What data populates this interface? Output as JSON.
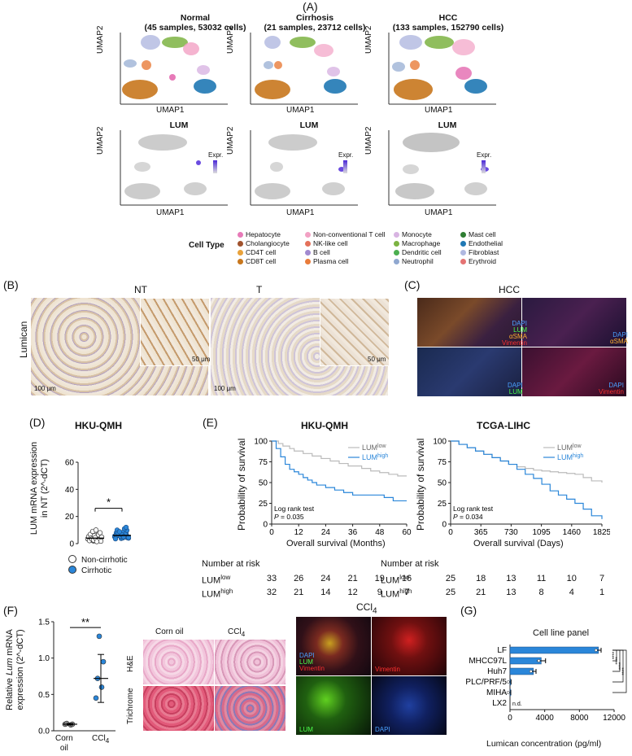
{
  "panels": {
    "A": "(A)",
    "B": "(B)",
    "C": "(C)",
    "D": "(D)",
    "E": "(E)",
    "F": "(F)",
    "G": "(G)"
  },
  "panelA": {
    "umaps": [
      {
        "title1": "Normal",
        "title2": "(45 samples, 53032 cells)"
      },
      {
        "title1": "Cirrhosis",
        "title2": "(21 samples, 23712 cells)"
      },
      {
        "title1": "HCC",
        "title2": "(133 samples, 152790 cells)"
      }
    ],
    "lum_title": "LUM",
    "xlabel": "UMAP1",
    "ylabel": "UMAP2",
    "expr_label": "Expr.",
    "celltype_label": "Cell Type",
    "celltypes": [
      {
        "name": "Hepatocyte",
        "color": "#e77ab8"
      },
      {
        "name": "Cholangiocyte",
        "color": "#a0522d"
      },
      {
        "name": "CD4T cell",
        "color": "#e9a23b"
      },
      {
        "name": "CD8T cell",
        "color": "#c8771d"
      },
      {
        "name": "Non-conventional T cell",
        "color": "#f2a1c4"
      },
      {
        "name": "NK-like cell",
        "color": "#e4715a"
      },
      {
        "name": "B cell",
        "color": "#a18ad0"
      },
      {
        "name": "Plasma cell",
        "color": "#e97c3a"
      },
      {
        "name": "Monocyte",
        "color": "#d8b4e2"
      },
      {
        "name": "Macrophage",
        "color": "#7cb342"
      },
      {
        "name": "Dendritic cell",
        "color": "#4caf50"
      },
      {
        "name": "Neutrophil",
        "color": "#90a8d0"
      },
      {
        "name": "Mast cell",
        "color": "#2e7d32"
      },
      {
        "name": "Endothelial",
        "color": "#1f78b4"
      },
      {
        "name": "Fibroblast",
        "color": "#b0b8e0"
      },
      {
        "name": "Erythroid",
        "color": "#e57373"
      }
    ]
  },
  "panelB": {
    "nt": "NT",
    "t": "T",
    "ylabel": "Lumican",
    "scale1": "100 μm",
    "scale2": "50 μm"
  },
  "panelC": {
    "title": "HCC",
    "q1": [
      "DAPI",
      "LUM",
      "αSMA",
      "Vimentin"
    ],
    "q2": [
      "DAPI",
      "αSMA"
    ],
    "q3": [
      "DAPI",
      "LUM"
    ],
    "q4": [
      "DAPI",
      "Vimentin"
    ]
  },
  "panelD": {
    "title": "HKU-QMH",
    "ylabel1": "LUM mRNA expression",
    "ylabel2": "in NT (2^-dCT)",
    "sig": "*",
    "legend": [
      {
        "name": "Non-cirrhotic",
        "color": "#ffffff"
      },
      {
        "name": "Cirrhotic",
        "color": "#2a86d9"
      }
    ],
    "yticks": [
      "0",
      "20",
      "40",
      "60"
    ]
  },
  "panelE": {
    "ylabel": "Probability of survival",
    "risk_label": "Number at risk",
    "plots": [
      {
        "title": "HKU-QMH",
        "xlabel": "Overall survival (Months)",
        "xticks": [
          "0",
          "12",
          "24",
          "36",
          "48",
          "60"
        ],
        "test": "Log rank test",
        "p": "P = 0.035",
        "low_label": "LUM",
        "low_sup": "low",
        "high_label": "LUM",
        "high_sup": "high",
        "risk_low": [
          "33",
          "26",
          "24",
          "21",
          "19",
          "16"
        ],
        "risk_high": [
          "32",
          "21",
          "14",
          "12",
          "9",
          "7"
        ]
      },
      {
        "title": "TCGA-LIHC",
        "xlabel": "Overall survival (Days)",
        "xticks": [
          "0",
          "365",
          "730",
          "1095",
          "1460",
          "1825"
        ],
        "test": "Log rank test",
        "p": "P = 0.034",
        "low_label": "LUM",
        "low_sup": "low",
        "high_label": "LUM",
        "high_sup": "high",
        "risk_low": [
          "25",
          "18",
          "13",
          "11",
          "10",
          "7"
        ],
        "risk_high": [
          "25",
          "21",
          "13",
          "8",
          "4",
          "1"
        ]
      }
    ],
    "yticks": [
      "0",
      "25",
      "50",
      "75",
      "100"
    ]
  },
  "panelF": {
    "ylabel1": "Relative Lum mRNA",
    "ylabel2": "expression (2^-dCT)",
    "sig": "**",
    "yticks": [
      "0.0",
      "0.5",
      "1.0",
      "1.5"
    ],
    "cats": [
      "Corn",
      "oil",
      "CCl4"
    ],
    "hist_cols": [
      "Corn oil",
      "CCl4"
    ],
    "hist_rows": [
      "H&E",
      "Trichrome"
    ],
    "if_title": "CCl4",
    "if_labels": {
      "q1": [
        "DAPI",
        "LUM",
        "Vimentin"
      ],
      "q2": "Vimentin",
      "q3": "LUM",
      "q4": "DAPI"
    }
  },
  "chart_data": [
    {
      "type": "scatter",
      "title": "HKU-QMH",
      "ylabel": "LUM mRNA expression in NT (2^-dCT)",
      "ylim": [
        0,
        60
      ],
      "groups": [
        "Non-cirrhotic",
        "Cirrhotic"
      ],
      "group_mean": [
        4,
        6
      ],
      "sig": "*"
    },
    {
      "type": "line",
      "title": "HKU-QMH",
      "xlabel": "Overall survival (Months)",
      "ylabel": "Probability of survival",
      "xlim": [
        0,
        60
      ],
      "ylim": [
        0,
        100
      ],
      "series": [
        {
          "name": "LUMlow",
          "color": "#bbbbbb",
          "x": [
            0,
            3,
            5,
            8,
            10,
            14,
            18,
            22,
            26,
            30,
            34,
            40,
            44,
            48,
            52,
            56,
            60
          ],
          "y": [
            100,
            97,
            94,
            91,
            88,
            85,
            82,
            79,
            76,
            73,
            70,
            67,
            64,
            62,
            60,
            58,
            58
          ]
        },
        {
          "name": "LUMhigh",
          "color": "#2a86d9",
          "x": [
            0,
            2,
            4,
            6,
            8,
            10,
            12,
            14,
            16,
            18,
            20,
            24,
            28,
            32,
            36,
            44,
            50,
            54,
            60
          ],
          "y": [
            100,
            91,
            81,
            72,
            66,
            63,
            60,
            56,
            53,
            50,
            47,
            44,
            41,
            38,
            35,
            35,
            32,
            28,
            28
          ]
        }
      ]
    },
    {
      "type": "line",
      "title": "TCGA-LIHC",
      "xlabel": "Overall survival (Days)",
      "ylabel": "Probability of survival",
      "xlim": [
        0,
        1825
      ],
      "ylim": [
        0,
        100
      ],
      "series": [
        {
          "name": "LUMlow",
          "color": "#bbbbbb",
          "x": [
            0,
            100,
            200,
            300,
            400,
            500,
            600,
            700,
            800,
            900,
            1000,
            1100,
            1200,
            1300,
            1400,
            1500,
            1600,
            1700,
            1825
          ],
          "y": [
            100,
            96,
            92,
            88,
            84,
            80,
            76,
            72,
            69,
            67,
            65,
            64,
            63,
            62,
            61,
            60,
            56,
            52,
            50
          ]
        },
        {
          "name": "LUMhigh",
          "color": "#2a86d9",
          "x": [
            0,
            100,
            200,
            300,
            400,
            500,
            600,
            700,
            800,
            900,
            1000,
            1100,
            1200,
            1300,
            1400,
            1500,
            1600,
            1700,
            1825
          ],
          "y": [
            100,
            96,
            92,
            88,
            84,
            80,
            76,
            72,
            66,
            60,
            55,
            48,
            40,
            35,
            30,
            25,
            18,
            10,
            6
          ]
        }
      ]
    },
    {
      "type": "scatter",
      "ylabel": "Relative Lum mRNA expression (2^-dCT)",
      "categories": [
        "Corn oil",
        "CCl4"
      ],
      "ylim": [
        0,
        1.5
      ],
      "points": [
        [
          0.09,
          0.08,
          0.1,
          0.09
        ],
        [
          0.45,
          0.6,
          0.72,
          0.95,
          1.3
        ]
      ],
      "mean": [
        0.09,
        0.72
      ],
      "sd": [
        0.01,
        0.33
      ],
      "sig": "**"
    },
    {
      "type": "bar",
      "title": "Cell line panel",
      "categories": [
        "LF",
        "MHCC97L",
        "Huh7",
        "PLC/PRF/5",
        "MIHA",
        "LX2"
      ],
      "values": [
        10200,
        3600,
        2700,
        80,
        60,
        0
      ],
      "errors": [
        300,
        500,
        300,
        40,
        30,
        0
      ],
      "xlabel": "Lumican concentration (pg/ml)",
      "xlim": [
        0,
        12000
      ],
      "xticks": [
        "0",
        "4000",
        "8000",
        "12000"
      ],
      "annotations": [
        "n.d."
      ],
      "sig": [
        "****",
        "****",
        "****",
        "****"
      ]
    }
  ]
}
